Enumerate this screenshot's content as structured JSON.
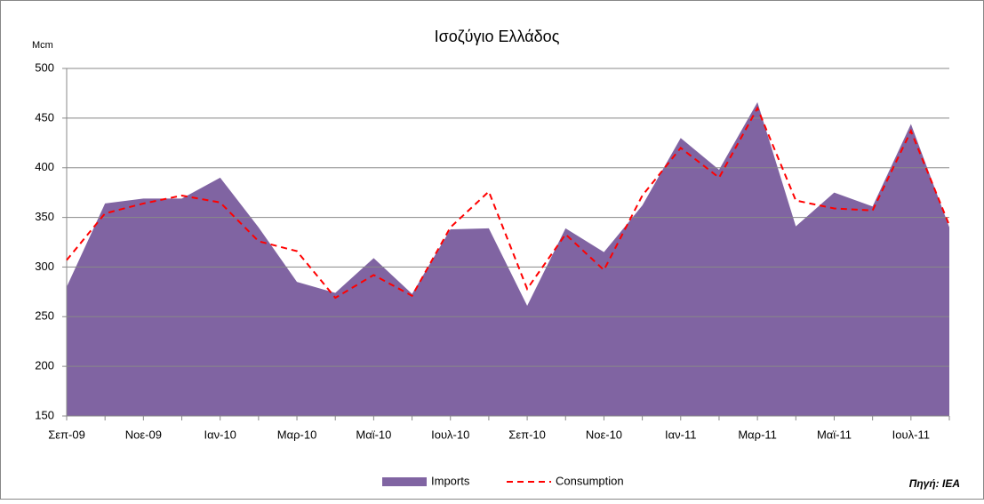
{
  "chart_data": {
    "type": "area-line",
    "title": "Ισοζύγιο Ελλάδος",
    "y_label": "Mcm",
    "source": "Πηγή: IEA",
    "categories": [
      "Σεπ-09",
      null,
      "Νοε-09",
      null,
      "Ιαν-10",
      null,
      "Μαρ-10",
      null,
      "Μαϊ-10",
      null,
      "Ιουλ-10",
      null,
      "Σεπ-10",
      null,
      "Νοε-10",
      null,
      "Ιαν-11",
      null,
      "Μαρ-11",
      null,
      "Μαϊ-11",
      null,
      "Ιουλ-11",
      null
    ],
    "series": [
      {
        "name": "Imports",
        "color": "#8064a2",
        "style": "area",
        "values": [
          280,
          364,
          369,
          369,
          390,
          340,
          285,
          274,
          309,
          273,
          338,
          339,
          261,
          339,
          315,
          362,
          430,
          398,
          466,
          341,
          375,
          361,
          444,
          340
        ]
      },
      {
        "name": "Consumption",
        "color": "#ff0000",
        "style": "dashed-line",
        "values": [
          307,
          354,
          364,
          372,
          365,
          326,
          316,
          269,
          292,
          271,
          340,
          376,
          278,
          333,
          297,
          372,
          420,
          390,
          460,
          367,
          359,
          357,
          437,
          342
        ]
      }
    ],
    "ylim": [
      150,
      500
    ],
    "yticks": [
      150,
      200,
      250,
      300,
      350,
      400,
      450,
      500
    ],
    "grid": true,
    "legend": "bottom"
  }
}
